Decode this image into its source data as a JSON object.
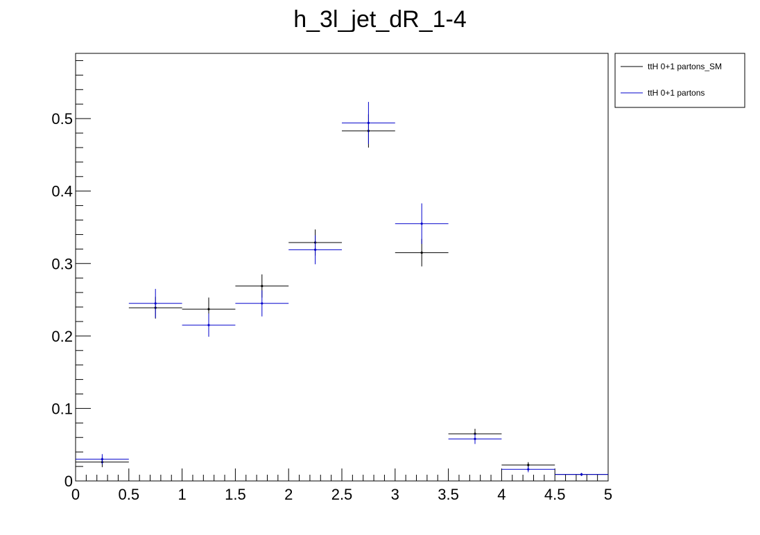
{
  "chart_data": {
    "type": "histogram-errorbars",
    "title": "h_3l_jet_dR_1-4",
    "xlabel": "",
    "ylabel": "",
    "xlim": [
      0,
      5
    ],
    "ylim": [
      0,
      0.59
    ],
    "x_ticks": [
      0,
      0.5,
      1,
      1.5,
      2,
      2.5,
      3,
      3.5,
      4,
      4.5,
      5
    ],
    "x_tick_labels": [
      "0",
      "0.5",
      "1",
      "1.5",
      "2",
      "2.5",
      "3",
      "3.5",
      "4",
      "4.5",
      "5"
    ],
    "y_ticks": [
      0,
      0.1,
      0.2,
      0.3,
      0.4,
      0.5
    ],
    "y_tick_labels": [
      "0",
      "0.1",
      "0.2",
      "0.3",
      "0.4",
      "0.5"
    ],
    "bin_edges": [
      0,
      0.5,
      1,
      1.5,
      2,
      2.5,
      3,
      3.5,
      4,
      4.5,
      5
    ],
    "legend_position": "top-right outside plot",
    "series": [
      {
        "name": "ttH 0+1 partons_SM",
        "color": "#000000",
        "values": [
          0.026,
          0.239,
          0.237,
          0.269,
          0.329,
          0.483,
          0.315,
          0.065,
          0.022,
          0.009
        ],
        "errors": [
          0.007,
          0.015,
          0.016,
          0.016,
          0.018,
          0.023,
          0.019,
          0.007,
          0.004,
          0.002
        ]
      },
      {
        "name": "ttH 0+1 partons",
        "color": "#0000cc",
        "values": [
          0.03,
          0.245,
          0.215,
          0.245,
          0.319,
          0.494,
          0.355,
          0.058,
          0.016,
          0.009
        ],
        "errors": [
          0.007,
          0.02,
          0.016,
          0.018,
          0.02,
          0.029,
          0.028,
          0.007,
          0.004,
          0.002
        ]
      }
    ]
  }
}
